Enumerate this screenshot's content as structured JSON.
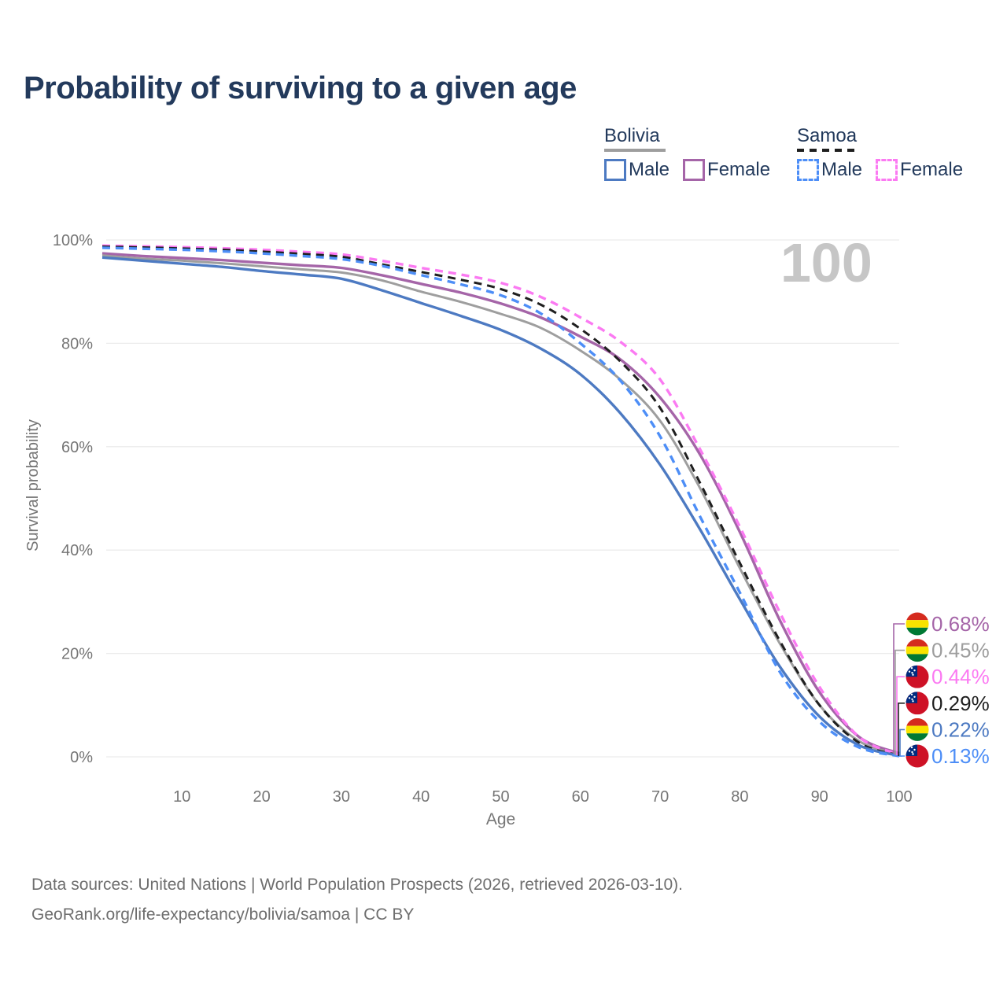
{
  "title": "Probability of surviving to a given age",
  "watermark": "100",
  "legend": {
    "groups": [
      {
        "name": "Bolivia",
        "line_style": "solid",
        "underline_color": "#9e9e9e",
        "items": [
          {
            "label": "Male",
            "color": "#4d7ac2"
          },
          {
            "label": "Female",
            "color": "#a565a8"
          }
        ]
      },
      {
        "name": "Samoa",
        "line_style": "dashed",
        "underline_color": "#1f1f1f",
        "items": [
          {
            "label": "Male",
            "color": "#4d8ef7"
          },
          {
            "label": "Female",
            "color": "#fb7af2"
          }
        ]
      }
    ]
  },
  "chart_data": {
    "type": "line",
    "title": "Probability of surviving to a given age",
    "xlabel": "Age",
    "ylabel": "Survival probability",
    "xlim": [
      0,
      100
    ],
    "ylim": [
      0,
      100
    ],
    "grid": "horizontal-only",
    "x_ticks": [
      10,
      20,
      30,
      40,
      50,
      60,
      70,
      80,
      90,
      100
    ],
    "y_ticks": [
      {
        "value": 0,
        "label": "0%"
      },
      {
        "value": 20,
        "label": "20%"
      },
      {
        "value": 40,
        "label": "40%"
      },
      {
        "value": 60,
        "label": "60%"
      },
      {
        "value": 80,
        "label": "80%"
      },
      {
        "value": 100,
        "label": "100%"
      }
    ],
    "x": [
      0,
      5,
      10,
      15,
      20,
      25,
      30,
      35,
      40,
      45,
      50,
      55,
      60,
      65,
      70,
      75,
      80,
      85,
      90,
      95,
      100
    ],
    "series": [
      {
        "name": "Bolivia Female",
        "country": "Bolivia",
        "sex": "female",
        "color": "#a565a8",
        "dash": "solid",
        "flag": "bolivia",
        "end_label": "0.68%",
        "end_value": 0.68,
        "values": [
          97.4,
          96.9,
          96.5,
          96.1,
          95.6,
          95.1,
          94.6,
          93.2,
          91.5,
          89.8,
          87.7,
          85.0,
          81.3,
          76.9,
          69.5,
          58.5,
          43.5,
          26.5,
          12.5,
          3.8,
          0.68
        ]
      },
      {
        "name": "Bolivia Total",
        "country": "Bolivia",
        "sex": "both",
        "color": "#9e9e9e",
        "dash": "solid",
        "flag": "bolivia",
        "end_label": "0.45%",
        "end_value": 0.45,
        "values": [
          97.0,
          96.4,
          96.0,
          95.5,
          94.9,
          94.3,
          93.7,
          92.2,
          90.0,
          88.0,
          85.7,
          83.0,
          78.6,
          73.0,
          65.0,
          52.0,
          36.5,
          22.0,
          10.0,
          3.0,
          0.45
        ]
      },
      {
        "name": "Samoa Female",
        "country": "Samoa",
        "sex": "female",
        "color": "#fb7af2",
        "dash": "dashed",
        "flag": "samoa",
        "end_label": "0.44%",
        "end_value": 0.44,
        "values": [
          98.9,
          98.75,
          98.6,
          98.4,
          98.1,
          97.7,
          97.2,
          96.0,
          94.6,
          93.3,
          91.7,
          89.0,
          85.0,
          80.3,
          73.0,
          59.5,
          44.5,
          28.0,
          13.5,
          3.8,
          0.44
        ]
      },
      {
        "name": "Samoa Total",
        "country": "Samoa",
        "sex": "both",
        "color": "#1f1f1f",
        "dash": "dashed",
        "flag": "samoa",
        "end_label": "0.29%",
        "end_value": 0.29,
        "values": [
          98.7,
          98.55,
          98.35,
          98.1,
          97.75,
          97.3,
          96.75,
          95.3,
          93.8,
          92.3,
          90.5,
          87.5,
          82.8,
          76.5,
          67.5,
          53.0,
          37.5,
          22.5,
          10.0,
          2.7,
          0.29
        ]
      },
      {
        "name": "Bolivia Male",
        "country": "Bolivia",
        "sex": "male",
        "color": "#4d7ac2",
        "dash": "solid",
        "flag": "bolivia",
        "end_label": "0.22%",
        "end_value": 0.22,
        "values": [
          96.6,
          96.0,
          95.4,
          94.8,
          94.0,
          93.3,
          92.5,
          90.3,
          87.8,
          85.3,
          82.6,
          79.0,
          74.0,
          66.5,
          56.5,
          44.0,
          30.5,
          17.5,
          7.8,
          2.2,
          0.22
        ]
      },
      {
        "name": "Samoa Male",
        "country": "Samoa",
        "sex": "male",
        "color": "#4d8ef7",
        "dash": "dashed",
        "flag": "samoa",
        "end_label": "0.13%",
        "end_value": 0.13,
        "values": [
          98.5,
          98.3,
          98.1,
          97.8,
          97.4,
          96.9,
          96.3,
          95.0,
          93.2,
          91.4,
          89.3,
          85.8,
          80.0,
          72.8,
          62.0,
          46.5,
          31.8,
          16.5,
          6.8,
          1.8,
          0.13
        ]
      }
    ],
    "colors": {
      "grid": "#ececec",
      "axis_text": "#757575",
      "bolivia_flag": [
        "#d52b1e",
        "#f9e300",
        "#007934"
      ],
      "samoa_flag": [
        "#ce1126",
        "#002b7f",
        "#ffffff"
      ]
    }
  },
  "footer": {
    "line1": "Data sources: United Nations | World Population Prospects (2026, retrieved 2026-03-10).",
    "line2": "GeoRank.org/life-expectancy/bolivia/samoa | CC BY"
  }
}
